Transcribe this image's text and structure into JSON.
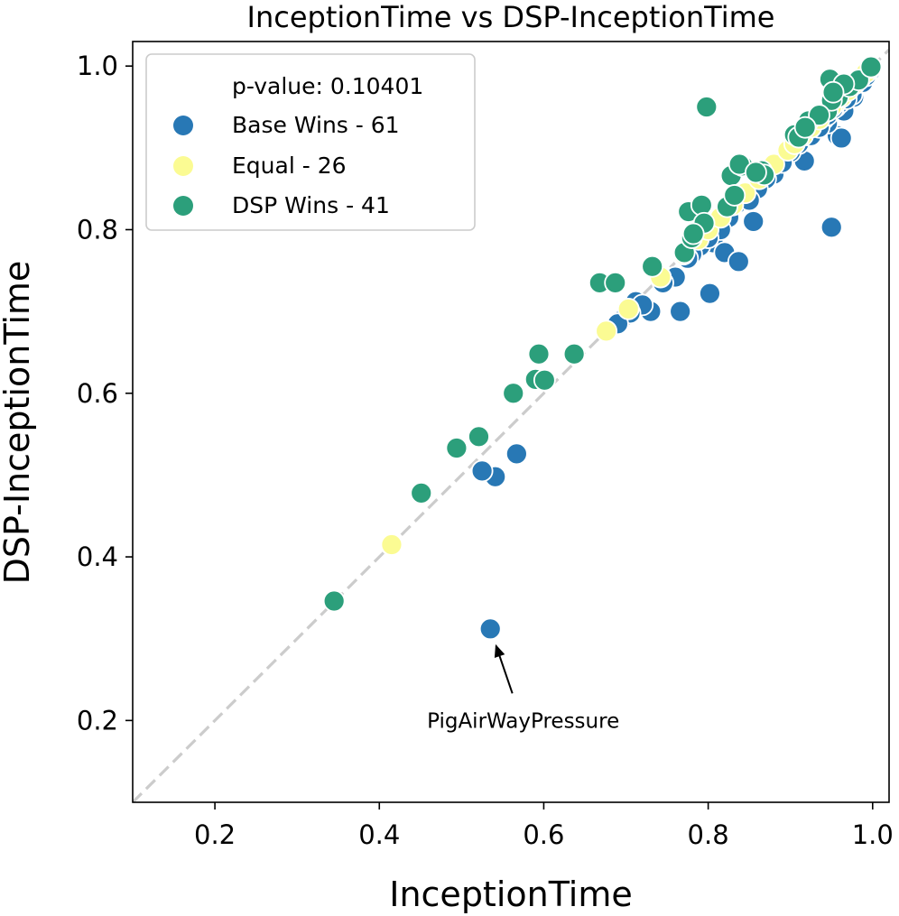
{
  "chart_data": {
    "type": "scatter",
    "title": "InceptionTime vs DSP-InceptionTime",
    "xlabel": "InceptionTime",
    "ylabel": "DSP-InceptionTime",
    "xlim": [
      0.1,
      1.02
    ],
    "ylim": [
      0.1,
      1.03
    ],
    "xticks": [
      0.2,
      0.4,
      0.6,
      0.8,
      1.0
    ],
    "yticks": [
      0.2,
      0.4,
      0.6,
      0.8,
      1.0
    ],
    "xtick_labels": [
      "0.2",
      "0.4",
      "0.6",
      "0.8",
      "1.0"
    ],
    "ytick_labels": [
      "0.2",
      "0.4",
      "0.6",
      "0.8",
      "1.0"
    ],
    "diagonal_reference": true,
    "legend": {
      "placement": "top-left",
      "title": "p-value: 0.10401",
      "entries": [
        {
          "label": "Base Wins - 61",
          "color": "#2878b5"
        },
        {
          "label": "Equal - 26",
          "color": "#fbfb93"
        },
        {
          "label": "DSP Wins - 41",
          "color": "#2c9f7b"
        }
      ]
    },
    "annotation": {
      "text": "PigAirWayPressure",
      "x": 0.535,
      "y": 0.312,
      "text_x": 0.575,
      "text_y": 0.2
    },
    "series": [
      {
        "name": "Base Wins - 61",
        "color": "#2878b5",
        "points": [
          [
            0.535,
            0.312
          ],
          [
            0.541,
            0.498
          ],
          [
            0.567,
            0.526
          ],
          [
            0.525,
            0.505
          ],
          [
            0.7,
            0.695
          ],
          [
            0.712,
            0.712
          ],
          [
            0.73,
            0.7
          ],
          [
            0.766,
            0.7
          ],
          [
            0.76,
            0.742
          ],
          [
            0.802,
            0.722
          ],
          [
            0.806,
            0.784
          ],
          [
            0.82,
            0.772
          ],
          [
            0.837,
            0.761
          ],
          [
            0.855,
            0.81
          ],
          [
            0.835,
            0.832
          ],
          [
            0.858,
            0.847
          ],
          [
            0.88,
            0.868
          ],
          [
            0.917,
            0.884
          ],
          [
            0.95,
            0.803
          ],
          [
            0.957,
            0.915
          ],
          [
            0.962,
            0.912
          ],
          [
            0.977,
            0.962
          ],
          [
            0.99,
            0.985
          ],
          [
            0.995,
            0.99
          ],
          [
            0.965,
            0.945
          ],
          [
            0.945,
            0.93
          ],
          [
            0.93,
            0.92
          ],
          [
            0.965,
            0.968
          ],
          [
            0.985,
            0.982
          ],
          [
            0.87,
            0.862
          ],
          [
            0.845,
            0.84
          ],
          [
            0.825,
            0.815
          ],
          [
            0.79,
            0.78
          ],
          [
            0.78,
            0.77
          ],
          [
            0.77,
            0.768
          ],
          [
            0.94,
            0.935
          ],
          [
            0.955,
            0.95
          ],
          [
            0.972,
            0.97
          ],
          [
            0.98,
            0.975
          ],
          [
            0.998,
            0.995
          ],
          [
            0.91,
            0.905
          ],
          [
            0.9,
            0.895
          ],
          [
            0.89,
            0.882
          ],
          [
            0.86,
            0.85
          ],
          [
            0.85,
            0.836
          ],
          [
            0.815,
            0.8
          ],
          [
            0.8,
            0.79
          ],
          [
            0.775,
            0.765
          ],
          [
            0.745,
            0.735
          ],
          [
            0.72,
            0.708
          ],
          [
            0.705,
            0.698
          ],
          [
            0.69,
            0.685
          ],
          [
            0.925,
            0.915
          ],
          [
            0.935,
            0.925
          ],
          [
            0.945,
            0.94
          ],
          [
            0.96,
            0.955
          ],
          [
            0.975,
            0.965
          ],
          [
            0.988,
            0.98
          ],
          [
            0.992,
            0.988
          ],
          [
            0.968,
            0.96
          ],
          [
            0.952,
            0.948
          ]
        ]
      },
      {
        "name": "Equal - 26",
        "color": "#fbfb93",
        "points": [
          [
            0.415,
            0.415
          ],
          [
            0.676,
            0.676
          ],
          [
            0.703,
            0.703
          ],
          [
            0.742,
            0.742
          ],
          [
            0.77,
            0.77
          ],
          [
            0.788,
            0.788
          ],
          [
            0.8,
            0.8
          ],
          [
            0.815,
            0.815
          ],
          [
            0.83,
            0.83
          ],
          [
            0.845,
            0.845
          ],
          [
            0.862,
            0.862
          ],
          [
            0.88,
            0.88
          ],
          [
            0.897,
            0.897
          ],
          [
            0.905,
            0.905
          ],
          [
            0.915,
            0.915
          ],
          [
            0.925,
            0.925
          ],
          [
            0.935,
            0.935
          ],
          [
            0.945,
            0.945
          ],
          [
            0.955,
            0.955
          ],
          [
            0.962,
            0.962
          ],
          [
            0.97,
            0.97
          ],
          [
            0.978,
            0.978
          ],
          [
            0.985,
            0.985
          ],
          [
            0.992,
            0.992
          ],
          [
            0.998,
            0.998
          ],
          [
            0.95,
            0.95
          ]
        ]
      },
      {
        "name": "DSP Wins - 41",
        "color": "#2c9f7b",
        "points": [
          [
            0.345,
            0.346
          ],
          [
            0.451,
            0.478
          ],
          [
            0.494,
            0.533
          ],
          [
            0.521,
            0.547
          ],
          [
            0.563,
            0.6
          ],
          [
            0.59,
            0.617
          ],
          [
            0.601,
            0.616
          ],
          [
            0.594,
            0.648
          ],
          [
            0.637,
            0.648
          ],
          [
            0.668,
            0.735
          ],
          [
            0.687,
            0.735
          ],
          [
            0.732,
            0.755
          ],
          [
            0.771,
            0.772
          ],
          [
            0.78,
            0.79
          ],
          [
            0.776,
            0.822
          ],
          [
            0.792,
            0.83
          ],
          [
            0.798,
            0.95
          ],
          [
            0.823,
            0.828
          ],
          [
            0.828,
            0.866
          ],
          [
            0.842,
            0.878
          ],
          [
            0.838,
            0.88
          ],
          [
            0.865,
            0.872
          ],
          [
            0.868,
            0.867
          ],
          [
            0.905,
            0.916
          ],
          [
            0.91,
            0.913
          ],
          [
            0.922,
            0.933
          ],
          [
            0.945,
            0.945
          ],
          [
            0.948,
            0.984
          ],
          [
            0.958,
            0.962
          ],
          [
            0.972,
            0.975
          ],
          [
            0.983,
            0.983
          ],
          [
            0.998,
            0.999
          ],
          [
            0.965,
            0.978
          ],
          [
            0.95,
            0.958
          ],
          [
            0.935,
            0.94
          ],
          [
            0.918,
            0.925
          ],
          [
            0.858,
            0.87
          ],
          [
            0.832,
            0.842
          ],
          [
            0.795,
            0.808
          ],
          [
            0.782,
            0.795
          ],
          [
            0.952,
            0.968
          ]
        ]
      }
    ]
  }
}
